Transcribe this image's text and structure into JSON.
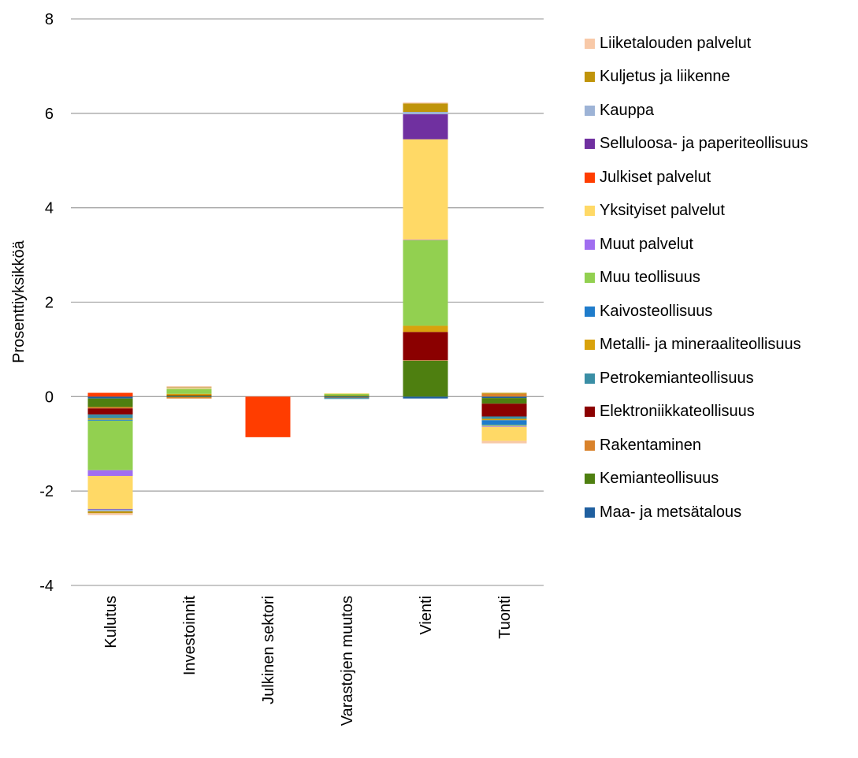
{
  "chart_data": {
    "type": "bar",
    "stacked": true,
    "title": "",
    "xlabel": "",
    "ylabel": "Prosenttiyksikköä",
    "ylim": [
      -4,
      8
    ],
    "yticks": [
      "-4",
      "-2",
      "0",
      "2",
      "4",
      "6",
      "8"
    ],
    "grid": "horizontal",
    "legend_position": "right",
    "categories": [
      "Kulutus",
      "Investoinnit",
      "Julkinen sektori",
      "Varastojen muutos",
      "Vienti",
      "Tuonti"
    ],
    "series": [
      {
        "name": "Maa- ja metsätalous",
        "color": "#1F5F9F",
        "values": [
          -0.04,
          -0.01,
          0,
          -0.02,
          -0.04,
          -0.03
        ]
      },
      {
        "name": "Kemianteollisuus",
        "color": "#4E7F10",
        "values": [
          -0.18,
          0.02,
          0,
          0.02,
          0.76,
          -0.12
        ]
      },
      {
        "name": "Rakentaminen",
        "color": "#D9822B",
        "values": [
          -0.03,
          -0.03,
          0,
          -0.01,
          0.01,
          0.06
        ]
      },
      {
        "name": "Elektroniikkateollisuus",
        "color": "#8B0000",
        "values": [
          -0.13,
          0.01,
          0,
          0,
          0.6,
          -0.27
        ]
      },
      {
        "name": "Petrokemianteollisuus",
        "color": "#3A8EA5",
        "values": [
          -0.08,
          0,
          0,
          -0.02,
          0,
          -0.05
        ]
      },
      {
        "name": "Metalli- ja mineraaliteollisuus",
        "color": "#D9A20C",
        "values": [
          -0.03,
          0.03,
          0,
          0.01,
          0.13,
          -0.03
        ]
      },
      {
        "name": "Kaivosteollisuus",
        "color": "#1F7CCB",
        "values": [
          -0.02,
          0,
          0,
          0,
          0,
          -0.1
        ]
      },
      {
        "name": "Muu teollisuus",
        "color": "#92D050",
        "values": [
          -1.05,
          0.1,
          0,
          0.03,
          1.81,
          -0.02
        ]
      },
      {
        "name": "Muut palvelut",
        "color": "#A06EF0",
        "values": [
          -0.12,
          0,
          0,
          0,
          0.01,
          -0.02
        ]
      },
      {
        "name": "Yksityiset palvelut",
        "color": "#FFD966",
        "values": [
          -0.7,
          0.02,
          0,
          0.01,
          2.13,
          -0.3
        ]
      },
      {
        "name": "Julkiset palvelut",
        "color": "#FF3D00",
        "values": [
          0.08,
          0,
          -0.86,
          0,
          0,
          0
        ]
      },
      {
        "name": "Selluloosa- ja paperiteollisuus",
        "color": "#7030A0",
        "values": [
          -0.01,
          0,
          0,
          0,
          0.53,
          0
        ]
      },
      {
        "name": "Kauppa",
        "color": "#9DB3D6",
        "values": [
          -0.04,
          0.01,
          0,
          0,
          0.05,
          0
        ]
      },
      {
        "name": "Kuljetus ja liikenne",
        "color": "#C0940A",
        "values": [
          -0.04,
          0.01,
          0,
          0,
          0.18,
          0.02
        ]
      },
      {
        "name": "Liiketalouden palvelut",
        "color": "#F8C9A8",
        "values": [
          -0.04,
          0.02,
          0,
          0,
          0.02,
          -0.05
        ]
      }
    ]
  }
}
